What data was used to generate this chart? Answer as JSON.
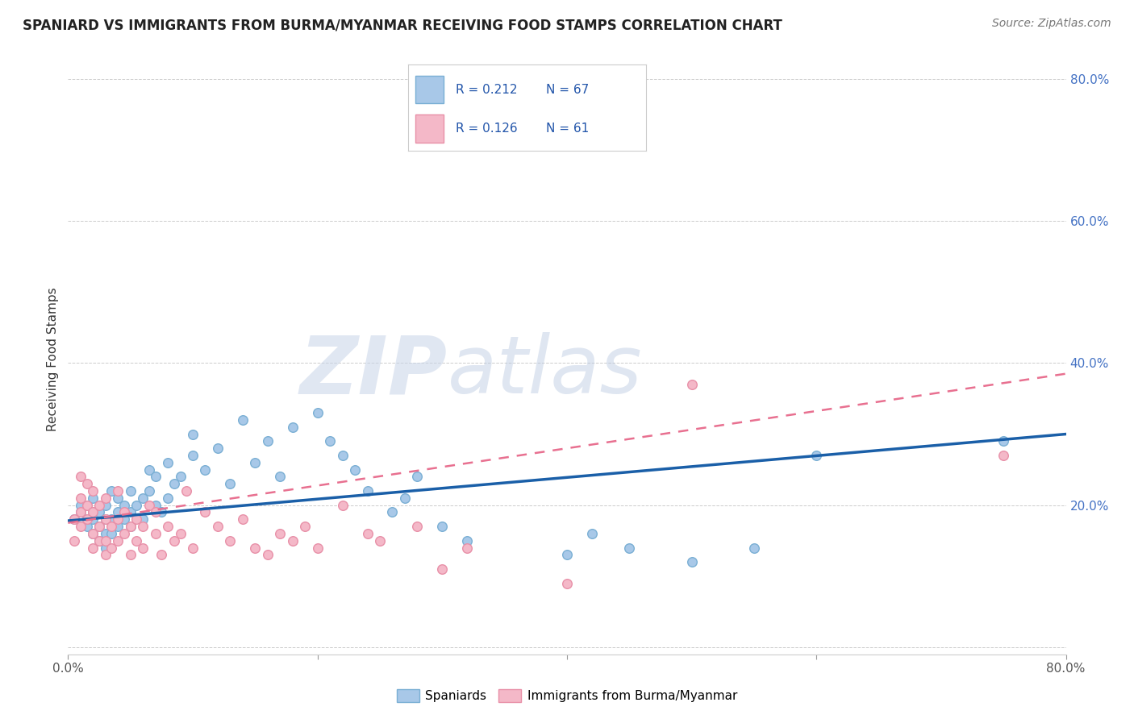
{
  "title": "SPANIARD VS IMMIGRANTS FROM BURMA/MYANMAR RECEIVING FOOD STAMPS CORRELATION CHART",
  "source": "Source: ZipAtlas.com",
  "ylabel": "Receiving Food Stamps",
  "blue_color": "#a8c8e8",
  "blue_edge_color": "#7aafd4",
  "pink_color": "#f4b8c8",
  "pink_edge_color": "#e890a8",
  "blue_line_color": "#1a5fa8",
  "pink_line_color": "#e87090",
  "watermark_zip": "ZIP",
  "watermark_atlas": "atlas",
  "xlim": [
    0.0,
    0.8
  ],
  "ylim": [
    -0.01,
    0.82
  ],
  "blue_trend_x0": 0.0,
  "blue_trend_y0": 0.178,
  "blue_trend_x1": 0.8,
  "blue_trend_y1": 0.3,
  "pink_trend_x0": 0.0,
  "pink_trend_y0": 0.175,
  "pink_trend_x1": 0.8,
  "pink_trend_y1": 0.385,
  "spaniards_x": [
    0.005,
    0.01,
    0.01,
    0.015,
    0.015,
    0.015,
    0.02,
    0.02,
    0.02,
    0.02,
    0.025,
    0.025,
    0.025,
    0.03,
    0.03,
    0.03,
    0.03,
    0.035,
    0.035,
    0.035,
    0.04,
    0.04,
    0.04,
    0.045,
    0.045,
    0.05,
    0.05,
    0.05,
    0.055,
    0.06,
    0.06,
    0.065,
    0.065,
    0.07,
    0.07,
    0.075,
    0.08,
    0.08,
    0.085,
    0.09,
    0.1,
    0.1,
    0.11,
    0.12,
    0.13,
    0.14,
    0.15,
    0.16,
    0.17,
    0.18,
    0.2,
    0.21,
    0.22,
    0.23,
    0.24,
    0.26,
    0.27,
    0.28,
    0.3,
    0.32,
    0.4,
    0.42,
    0.45,
    0.5,
    0.55,
    0.6,
    0.75
  ],
  "spaniards_y": [
    0.18,
    0.19,
    0.2,
    0.17,
    0.18,
    0.2,
    0.16,
    0.18,
    0.19,
    0.21,
    0.15,
    0.17,
    0.19,
    0.14,
    0.16,
    0.18,
    0.2,
    0.16,
    0.18,
    0.22,
    0.17,
    0.19,
    0.21,
    0.18,
    0.2,
    0.17,
    0.19,
    0.22,
    0.2,
    0.18,
    0.21,
    0.22,
    0.25,
    0.2,
    0.24,
    0.19,
    0.21,
    0.26,
    0.23,
    0.24,
    0.27,
    0.3,
    0.25,
    0.28,
    0.23,
    0.32,
    0.26,
    0.29,
    0.24,
    0.31,
    0.33,
    0.29,
    0.27,
    0.25,
    0.22,
    0.19,
    0.21,
    0.24,
    0.17,
    0.15,
    0.13,
    0.16,
    0.14,
    0.12,
    0.14,
    0.27,
    0.29
  ],
  "burma_x": [
    0.005,
    0.005,
    0.01,
    0.01,
    0.01,
    0.01,
    0.015,
    0.015,
    0.015,
    0.02,
    0.02,
    0.02,
    0.02,
    0.025,
    0.025,
    0.025,
    0.03,
    0.03,
    0.03,
    0.03,
    0.035,
    0.035,
    0.04,
    0.04,
    0.04,
    0.045,
    0.045,
    0.05,
    0.05,
    0.055,
    0.055,
    0.06,
    0.06,
    0.065,
    0.07,
    0.07,
    0.075,
    0.08,
    0.085,
    0.09,
    0.095,
    0.1,
    0.11,
    0.12,
    0.13,
    0.14,
    0.15,
    0.16,
    0.17,
    0.18,
    0.19,
    0.2,
    0.22,
    0.24,
    0.25,
    0.28,
    0.3,
    0.32,
    0.4,
    0.5,
    0.75
  ],
  "burma_y": [
    0.15,
    0.18,
    0.17,
    0.19,
    0.21,
    0.24,
    0.18,
    0.2,
    0.23,
    0.14,
    0.16,
    0.19,
    0.22,
    0.15,
    0.17,
    0.2,
    0.13,
    0.15,
    0.18,
    0.21,
    0.14,
    0.17,
    0.15,
    0.18,
    0.22,
    0.16,
    0.19,
    0.13,
    0.17,
    0.15,
    0.18,
    0.14,
    0.17,
    0.2,
    0.16,
    0.19,
    0.13,
    0.17,
    0.15,
    0.16,
    0.22,
    0.14,
    0.19,
    0.17,
    0.15,
    0.18,
    0.14,
    0.13,
    0.16,
    0.15,
    0.17,
    0.14,
    0.2,
    0.16,
    0.15,
    0.17,
    0.11,
    0.14,
    0.09,
    0.37,
    0.27
  ]
}
